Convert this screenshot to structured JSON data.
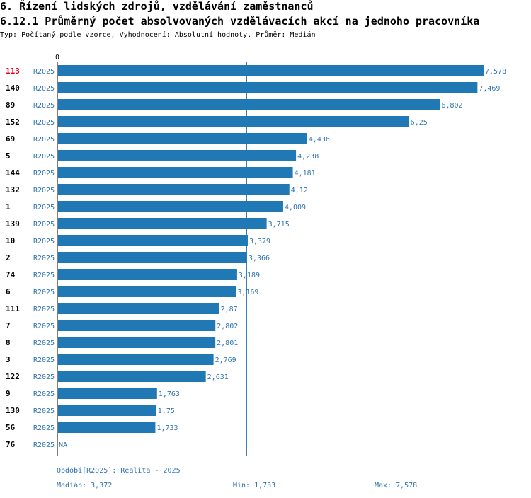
{
  "header": {
    "title": "6. Řízení lidských zdrojů, vzdělávání zaměstnanců",
    "chart_title": "6.12.1 Průměrný počet absolvovaných vzdělávacích akcí na jednoho pracovníka",
    "subtitle": "Typ: Počítaný podle vzorce, Vyhodnocení: Absolutní hodnoty, Průměr: Medián"
  },
  "chart_data": {
    "type": "bar",
    "orientation": "horizontal",
    "zero_label": "0",
    "highlight_color": "#e8001c",
    "bar_color": "#2079b4",
    "label_color": "#2e74b0",
    "median_line": 3.372,
    "xlim": [
      0,
      7.578
    ],
    "series_label": "R2025",
    "rows": [
      {
        "id": "113",
        "period": "R2025",
        "value": 7.578,
        "label": "7,578",
        "highlight": true
      },
      {
        "id": "140",
        "period": "R2025",
        "value": 7.469,
        "label": "7,469"
      },
      {
        "id": "89",
        "period": "R2025",
        "value": 6.802,
        "label": "6,802"
      },
      {
        "id": "152",
        "period": "R2025",
        "value": 6.25,
        "label": "6,25"
      },
      {
        "id": "69",
        "period": "R2025",
        "value": 4.436,
        "label": "4,436"
      },
      {
        "id": "5",
        "period": "R2025",
        "value": 4.238,
        "label": "4,238"
      },
      {
        "id": "144",
        "period": "R2025",
        "value": 4.181,
        "label": "4,181"
      },
      {
        "id": "132",
        "period": "R2025",
        "value": 4.12,
        "label": "4,12"
      },
      {
        "id": "1",
        "period": "R2025",
        "value": 4.009,
        "label": "4,009"
      },
      {
        "id": "139",
        "period": "R2025",
        "value": 3.715,
        "label": "3,715"
      },
      {
        "id": "10",
        "period": "R2025",
        "value": 3.379,
        "label": "3,379"
      },
      {
        "id": "2",
        "period": "R2025",
        "value": 3.366,
        "label": "3,366"
      },
      {
        "id": "74",
        "period": "R2025",
        "value": 3.189,
        "label": "3,189"
      },
      {
        "id": "6",
        "period": "R2025",
        "value": 3.169,
        "label": "3,169"
      },
      {
        "id": "111",
        "period": "R2025",
        "value": 2.87,
        "label": "2,87"
      },
      {
        "id": "7",
        "period": "R2025",
        "value": 2.802,
        "label": "2,802"
      },
      {
        "id": "8",
        "period": "R2025",
        "value": 2.801,
        "label": "2,801"
      },
      {
        "id": "3",
        "period": "R2025",
        "value": 2.769,
        "label": "2,769"
      },
      {
        "id": "122",
        "period": "R2025",
        "value": 2.631,
        "label": "2,631"
      },
      {
        "id": "9",
        "period": "R2025",
        "value": 1.763,
        "label": "1,763"
      },
      {
        "id": "130",
        "period": "R2025",
        "value": 1.75,
        "label": "1,75"
      },
      {
        "id": "56",
        "period": "R2025",
        "value": 1.733,
        "label": "1,733"
      },
      {
        "id": "76",
        "period": "R2025",
        "value": null,
        "label": "NA"
      }
    ]
  },
  "footer": {
    "period": "Období[R2025]: Realita - 2025",
    "median": "Medián: 3,372",
    "min": "Min: 1,733",
    "max": "Max: 7,578"
  }
}
